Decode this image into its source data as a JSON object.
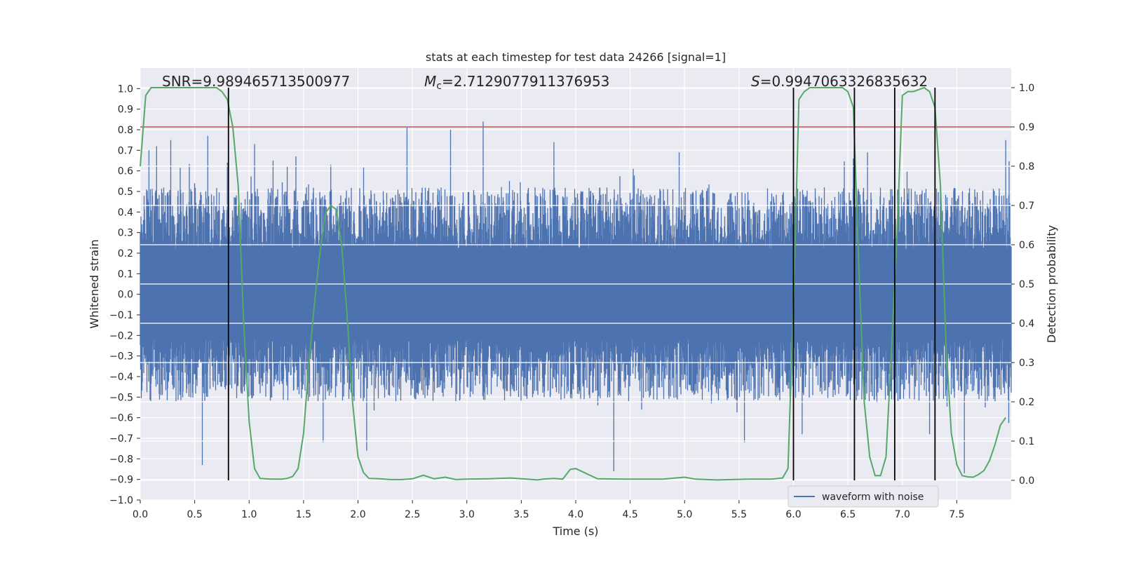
{
  "chart_data": {
    "type": "line",
    "title": "stats at each timestep for test data 24266 [signal=1]",
    "xlabel": "Time (s)",
    "ylabel": "Whitened strain",
    "y2label": "Detection probability",
    "xlim": [
      0,
      8
    ],
    "ylim": [
      -1.0,
      1.1
    ],
    "y2lim": [
      -0.05,
      1.05
    ],
    "xticks": [
      0.0,
      0.5,
      1.0,
      1.5,
      2.0,
      2.5,
      3.0,
      3.5,
      4.0,
      4.5,
      5.0,
      5.5,
      6.0,
      6.5,
      7.0,
      7.5
    ],
    "xtick_labels": [
      "0.0",
      "0.5",
      "1.0",
      "1.5",
      "2.0",
      "2.5",
      "3.0",
      "3.5",
      "4.0",
      "4.5",
      "5.0",
      "5.5",
      "6.0",
      "6.5",
      "7.0",
      "7.5"
    ],
    "yticks": [
      -1.0,
      -0.9,
      -0.8,
      -0.7,
      -0.6,
      -0.5,
      -0.4,
      -0.3,
      -0.2,
      -0.1,
      0.0,
      0.1,
      0.2,
      0.3,
      0.4,
      0.5,
      0.6,
      0.7,
      0.8,
      0.9,
      1.0
    ],
    "ytick_labels": [
      "−1.0",
      "−0.9",
      "−0.8",
      "−0.7",
      "−0.6",
      "−0.5",
      "−0.4",
      "−0.3",
      "−0.2",
      "−0.1",
      "0.0",
      "0.1",
      "0.2",
      "0.3",
      "0.4",
      "0.5",
      "0.6",
      "0.7",
      "0.8",
      "0.9",
      "1.0"
    ],
    "y2ticks": [
      0.0,
      0.1,
      0.2,
      0.3,
      0.4,
      0.5,
      0.6,
      0.7,
      0.8,
      0.9,
      1.0
    ],
    "y2tick_labels": [
      "0.0",
      "0.1",
      "0.2",
      "0.3",
      "0.4",
      "0.5",
      "0.6",
      "0.7",
      "0.8",
      "0.9",
      "1.0"
    ],
    "grid": true,
    "annotations": {
      "snr": "SNR=9.989465713500977",
      "mc_symbol": "M",
      "mc_subscript": "c",
      "mc_value": "=2.7129077911376953",
      "s_symbol": "S",
      "s_value": "=0.9947063326835632"
    },
    "legend": {
      "label": "waveform with noise",
      "placement": "lower-right"
    },
    "colors": {
      "waveform": "#4c72b0",
      "probability": "#55a868",
      "threshold": "#c44e52",
      "markers": "#000000",
      "plot_background": "#eaeaf2",
      "grid": "#ffffff"
    },
    "threshold_probability": 0.9,
    "detection_markers": [
      0.81,
      6.0,
      6.56,
      6.93,
      7.3
    ],
    "waveform": {
      "description_free": true,
      "envelope": 0.3,
      "spike_times": [
        0.08,
        0.15,
        0.28,
        0.57,
        0.62,
        0.8,
        1.05,
        1.22,
        1.35,
        1.43,
        1.68,
        1.75,
        2.08,
        2.45,
        2.85,
        3.15,
        3.8,
        4.35,
        4.95,
        5.55,
        6.08,
        6.55,
        6.68,
        7.25,
        7.57,
        7.95
      ],
      "spike_values": [
        0.7,
        0.72,
        0.75,
        -0.83,
        0.77,
        0.64,
        0.73,
        0.65,
        0.62,
        0.67,
        -0.72,
        0.63,
        -0.76,
        0.81,
        0.8,
        0.84,
        0.74,
        -0.86,
        0.69,
        -0.72,
        -0.68,
        0.66,
        0.69,
        -0.68,
        -0.87,
        0.75
      ]
    },
    "series": [
      {
        "name": "",
        "axis": "right",
        "x": [
          0.0,
          0.05,
          0.1,
          0.15,
          0.2,
          0.3,
          0.4,
          0.5,
          0.6,
          0.7,
          0.75,
          0.8,
          0.85,
          0.9,
          0.95,
          1.0,
          1.05,
          1.1,
          1.2,
          1.3,
          1.35,
          1.4,
          1.45,
          1.5,
          1.55,
          1.6,
          1.65,
          1.7,
          1.75,
          1.8,
          1.85,
          1.9,
          1.95,
          2.0,
          2.05,
          2.1,
          2.2,
          2.3,
          2.4,
          2.5,
          2.6,
          2.7,
          2.8,
          2.9,
          3.0,
          3.2,
          3.4,
          3.55,
          3.65,
          3.7,
          3.8,
          3.88,
          3.95,
          4.0,
          4.2,
          4.5,
          4.7,
          4.8,
          5.0,
          5.1,
          5.3,
          5.6,
          5.8,
          5.9,
          5.95,
          6.0,
          6.05,
          6.1,
          6.15,
          6.2,
          6.3,
          6.45,
          6.5,
          6.55,
          6.6,
          6.65,
          6.7,
          6.75,
          6.8,
          6.85,
          6.9,
          6.95,
          7.0,
          7.05,
          7.1,
          7.2,
          7.25,
          7.3,
          7.35,
          7.4,
          7.45,
          7.5,
          7.55,
          7.6,
          7.65,
          7.7,
          7.75,
          7.8,
          7.85,
          7.9,
          7.95
        ],
        "y": [
          0.8,
          0.98,
          1.0,
          1.0,
          1.0,
          1.0,
          1.0,
          1.0,
          1.0,
          1.0,
          0.99,
          0.97,
          0.9,
          0.75,
          0.4,
          0.15,
          0.03,
          0.005,
          0.003,
          0.003,
          0.005,
          0.01,
          0.03,
          0.12,
          0.3,
          0.45,
          0.58,
          0.68,
          0.7,
          0.69,
          0.6,
          0.42,
          0.2,
          0.06,
          0.02,
          0.005,
          0.004,
          0.002,
          0.002,
          0.004,
          0.013,
          0.004,
          0.008,
          0.002,
          0.003,
          0.004,
          0.006,
          0.003,
          0.001,
          0.003,
          0.005,
          0.003,
          0.028,
          0.03,
          0.004,
          0.003,
          0.003,
          0.003,
          0.008,
          0.003,
          0.001,
          0.003,
          0.003,
          0.006,
          0.03,
          0.45,
          0.97,
          0.99,
          1.0,
          1.0,
          1.0,
          1.0,
          0.99,
          0.95,
          0.55,
          0.2,
          0.06,
          0.012,
          0.012,
          0.06,
          0.33,
          0.62,
          0.98,
          0.99,
          0.99,
          1.0,
          0.99,
          0.95,
          0.75,
          0.35,
          0.12,
          0.04,
          0.012,
          0.009,
          0.008,
          0.015,
          0.025,
          0.05,
          0.09,
          0.14,
          0.16
        ]
      }
    ]
  }
}
